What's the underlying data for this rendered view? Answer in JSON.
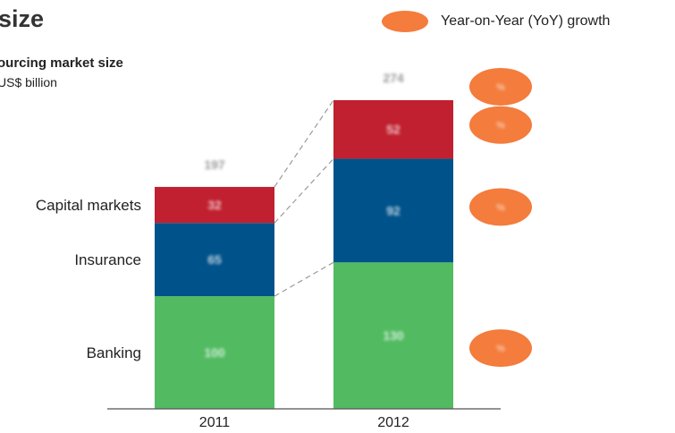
{
  "title": "size",
  "subtitle": "ourcing market size",
  "unit": "US$ billion",
  "legend": {
    "label": "Year-on-Year (YoY) growth",
    "color": "#f47c3c"
  },
  "chart_data": {
    "type": "bar",
    "stacked": true,
    "categories": [
      "2011",
      "2012"
    ],
    "series": [
      {
        "name": "Banking",
        "color": "#52bb62",
        "values": [
          100,
          130
        ]
      },
      {
        "name": "Insurance",
        "color": "#00528a",
        "values": [
          65,
          92
        ]
      },
      {
        "name": "Capital markets",
        "color": "#c0202f",
        "values": [
          32,
          52
        ]
      }
    ],
    "ylim": [
      0,
      270
    ],
    "xlabel": "",
    "ylabel": "",
    "legend_position": "top-right",
    "grid": false
  }
}
